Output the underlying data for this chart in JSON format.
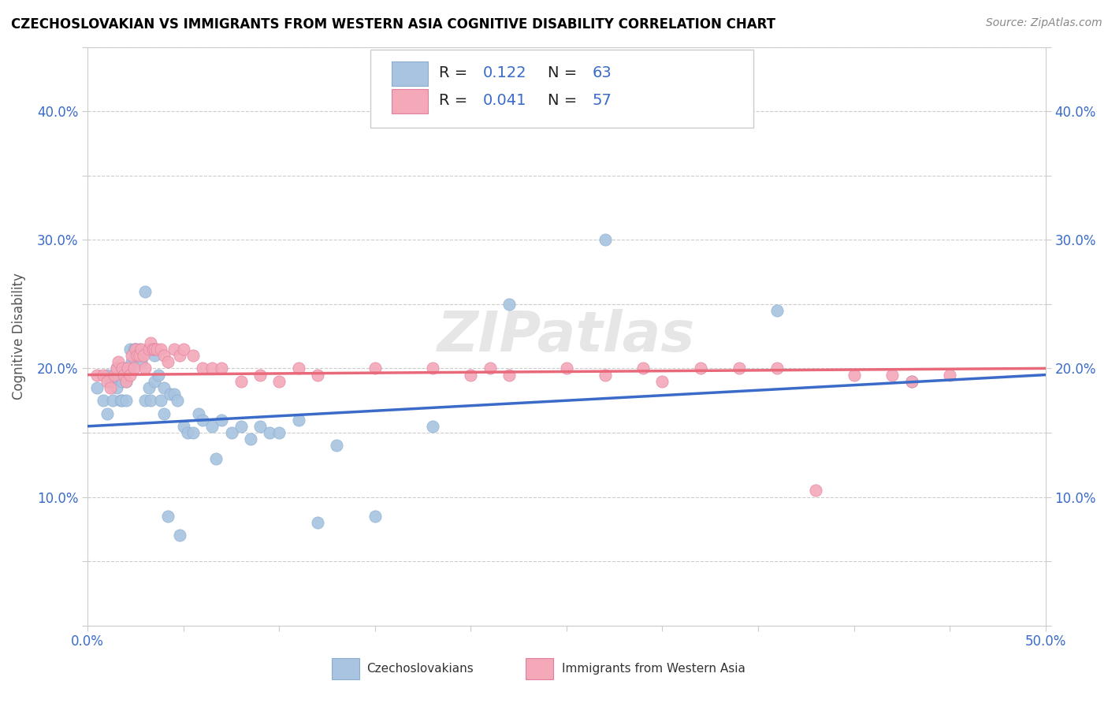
{
  "title": "CZECHOSLOVAKIAN VS IMMIGRANTS FROM WESTERN ASIA COGNITIVE DISABILITY CORRELATION CHART",
  "source": "Source: ZipAtlas.com",
  "ylabel": "Cognitive Disability",
  "xlim": [
    0.0,
    0.5
  ],
  "ylim": [
    0.0,
    0.45
  ],
  "xticks": [
    0.0,
    0.05,
    0.1,
    0.15,
    0.2,
    0.25,
    0.3,
    0.35,
    0.4,
    0.45,
    0.5
  ],
  "yticks": [
    0.0,
    0.05,
    0.1,
    0.15,
    0.2,
    0.25,
    0.3,
    0.35,
    0.4,
    0.45
  ],
  "xticklabels": [
    "0.0%",
    "",
    "",
    "",
    "",
    "",
    "",
    "",
    "",
    "",
    "50.0%"
  ],
  "yticklabels": [
    "",
    "",
    "10.0%",
    "",
    "20.0%",
    "",
    "30.0%",
    "",
    "40.0%",
    ""
  ],
  "blue_R": 0.122,
  "blue_N": 63,
  "pink_R": 0.041,
  "pink_N": 57,
  "blue_color": "#A8C4E0",
  "pink_color": "#F4A8B8",
  "blue_line_color": "#3A6BC8",
  "pink_line_color": "#E8697A",
  "legend_label_blue": "Czechoslovakians",
  "legend_label_pink": "Immigrants from Western Asia",
  "blue_scatter_x": [
    0.005,
    0.008,
    0.01,
    0.01,
    0.012,
    0.013,
    0.015,
    0.015,
    0.016,
    0.017,
    0.018,
    0.018,
    0.02,
    0.02,
    0.02,
    0.022,
    0.022,
    0.023,
    0.024,
    0.025,
    0.025,
    0.026,
    0.027,
    0.028,
    0.028,
    0.03,
    0.03,
    0.032,
    0.033,
    0.035,
    0.035,
    0.037,
    0.038,
    0.04,
    0.04,
    0.042,
    0.043,
    0.045,
    0.047,
    0.048,
    0.05,
    0.052,
    0.055,
    0.058,
    0.06,
    0.065,
    0.067,
    0.07,
    0.075,
    0.08,
    0.085,
    0.09,
    0.095,
    0.1,
    0.11,
    0.12,
    0.13,
    0.15,
    0.18,
    0.22,
    0.27,
    0.36,
    0.43
  ],
  "blue_scatter_y": [
    0.185,
    0.175,
    0.195,
    0.165,
    0.19,
    0.175,
    0.185,
    0.2,
    0.195,
    0.175,
    0.19,
    0.175,
    0.19,
    0.2,
    0.175,
    0.215,
    0.2,
    0.205,
    0.215,
    0.215,
    0.215,
    0.21,
    0.215,
    0.21,
    0.205,
    0.26,
    0.175,
    0.185,
    0.175,
    0.19,
    0.21,
    0.195,
    0.175,
    0.165,
    0.185,
    0.085,
    0.18,
    0.18,
    0.175,
    0.07,
    0.155,
    0.15,
    0.15,
    0.165,
    0.16,
    0.155,
    0.13,
    0.16,
    0.15,
    0.155,
    0.145,
    0.155,
    0.15,
    0.15,
    0.16,
    0.08,
    0.14,
    0.085,
    0.155,
    0.25,
    0.3,
    0.245,
    0.19
  ],
  "pink_scatter_x": [
    0.005,
    0.008,
    0.01,
    0.012,
    0.014,
    0.015,
    0.016,
    0.018,
    0.019,
    0.02,
    0.021,
    0.022,
    0.023,
    0.024,
    0.025,
    0.026,
    0.027,
    0.028,
    0.029,
    0.03,
    0.032,
    0.033,
    0.034,
    0.035,
    0.036,
    0.038,
    0.04,
    0.042,
    0.045,
    0.048,
    0.05,
    0.055,
    0.06,
    0.065,
    0.07,
    0.08,
    0.09,
    0.1,
    0.11,
    0.12,
    0.15,
    0.18,
    0.2,
    0.21,
    0.22,
    0.25,
    0.27,
    0.29,
    0.3,
    0.32,
    0.34,
    0.36,
    0.38,
    0.4,
    0.42,
    0.43,
    0.45
  ],
  "pink_scatter_y": [
    0.195,
    0.195,
    0.19,
    0.185,
    0.195,
    0.2,
    0.205,
    0.2,
    0.195,
    0.19,
    0.2,
    0.195,
    0.21,
    0.2,
    0.215,
    0.21,
    0.21,
    0.215,
    0.21,
    0.2,
    0.215,
    0.22,
    0.215,
    0.215,
    0.215,
    0.215,
    0.21,
    0.205,
    0.215,
    0.21,
    0.215,
    0.21,
    0.2,
    0.2,
    0.2,
    0.19,
    0.195,
    0.19,
    0.2,
    0.195,
    0.2,
    0.2,
    0.195,
    0.2,
    0.195,
    0.2,
    0.195,
    0.2,
    0.19,
    0.2,
    0.2,
    0.2,
    0.105,
    0.195,
    0.195,
    0.19,
    0.195
  ],
  "blue_line_x": [
    0.0,
    0.5
  ],
  "blue_line_y": [
    0.155,
    0.195
  ],
  "pink_line_x": [
    0.0,
    0.5
  ],
  "pink_line_y": [
    0.195,
    0.2
  ]
}
